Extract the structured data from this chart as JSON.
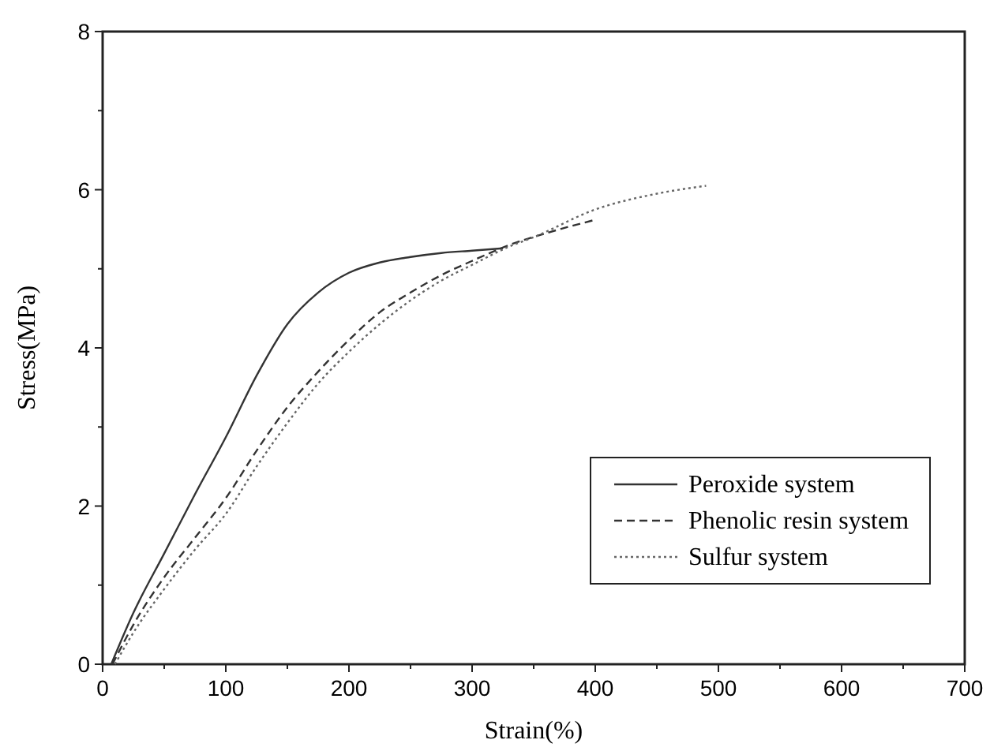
{
  "chart_data": {
    "type": "line",
    "xlabel": "Strain(%)",
    "ylabel": "Stress(MPa)",
    "xlim": [
      0,
      700
    ],
    "ylim": [
      0,
      8
    ],
    "xticks": [
      0,
      100,
      200,
      300,
      400,
      500,
      600,
      700
    ],
    "yticks": [
      0,
      2,
      4,
      6,
      8
    ],
    "legend": "bottom right",
    "grid": false,
    "marker": "none",
    "series": [
      {
        "name": "Peroxide system",
        "color": "#333333",
        "line_style": "solid",
        "x": [
          7,
          25,
          50,
          75,
          100,
          125,
          150,
          175,
          200,
          225,
          250,
          275,
          300,
          325
        ],
        "values": [
          0,
          0.65,
          1.4,
          2.15,
          2.87,
          3.65,
          4.3,
          4.7,
          4.95,
          5.08,
          5.15,
          5.2,
          5.23,
          5.26
        ]
      },
      {
        "name": "Phenolic resin system",
        "color": "#333333",
        "line_style": "dashed",
        "x": [
          8,
          25,
          50,
          75,
          100,
          125,
          150,
          175,
          200,
          225,
          250,
          275,
          300,
          330,
          360,
          400
        ],
        "values": [
          0,
          0.5,
          1.1,
          1.6,
          2.1,
          2.7,
          3.25,
          3.7,
          4.1,
          4.45,
          4.7,
          4.92,
          5.1,
          5.3,
          5.45,
          5.62
        ]
      },
      {
        "name": "Sulfur system",
        "color": "#666666",
        "line_style": "dotted",
        "x": [
          10,
          25,
          50,
          75,
          100,
          125,
          150,
          175,
          200,
          225,
          250,
          275,
          300,
          330,
          350,
          400,
          450,
          490
        ],
        "values": [
          0,
          0.4,
          0.95,
          1.45,
          1.9,
          2.5,
          3.05,
          3.55,
          3.95,
          4.3,
          4.6,
          4.85,
          5.05,
          5.28,
          5.4,
          5.75,
          5.95,
          6.05
        ]
      }
    ]
  }
}
